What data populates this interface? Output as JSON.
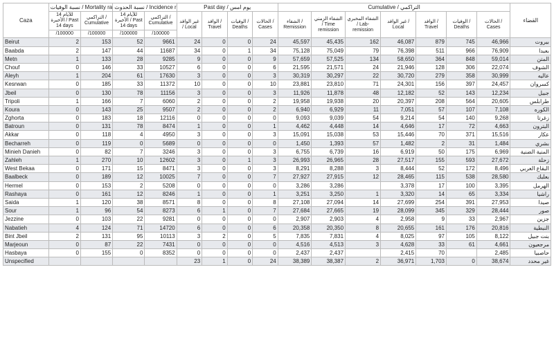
{
  "headers": {
    "caza": "Caza",
    "qada": "القضاء",
    "mortality_group": "نسبة الوفيات / Mortality rate",
    "incidence_group": "نسبة الحدوث / Incidence rate",
    "pastday_group": "Past day / يوم امس",
    "cumulative_group": "Cumulative / التراكمي",
    "mort_p14": "للأيام 14 الأخيرة / Past 14 days",
    "mort_cum": "التراكمي / Cumulative",
    "inc_p14": "للأيام 14 الأخيرة / Past 14 days",
    "inc_cum": "التراكمي / Cumulative",
    "pd_local": "غير الوافد / Local",
    "pd_travel": "الوافد / Travel",
    "pd_deaths": "الوفيات / Deaths",
    "pd_cases": "الحالات / Cases",
    "cu_rem": "الشفاء / Remission",
    "cu_timerem": "الشفاء الزمني / Time remission",
    "cu_lab": "الشفاء المخبري / Lab-remission",
    "cu_local": "غير الوافد / Local",
    "cu_travel": "الوافد / Travel",
    "cu_deaths": "الوفيات / Deaths",
    "cu_cases": "الحالات / Cases",
    "per100k": "/100000"
  },
  "rows": [
    {
      "en": "Beirut",
      "m14": 2,
      "mcum": 153,
      "i14": 52,
      "icum": 9661,
      "pdl": 24,
      "pdt": 0,
      "pdd": 0,
      "pdc": 24,
      "cur": "45,597",
      "cut": "45,435",
      "cul": 162,
      "cloc": "46,087",
      "ctr": 879,
      "cd": 745,
      "cc": "46,966",
      "ar": "بيروت"
    },
    {
      "en": "Baabda",
      "m14": 2,
      "mcum": 147,
      "i14": 44,
      "icum": 11687,
      "pdl": 34,
      "pdt": 0,
      "pdd": 1,
      "pdc": 34,
      "cur": "75,128",
      "cut": "75,049",
      "cul": 79,
      "cloc": "76,398",
      "ctr": 511,
      "cd": 966,
      "cc": "76,909",
      "ar": "بعبدا"
    },
    {
      "en": "Metn",
      "m14": 1,
      "mcum": 133,
      "i14": 28,
      "icum": 9285,
      "pdl": 9,
      "pdt": 0,
      "pdd": 0,
      "pdc": 9,
      "cur": "57,659",
      "cut": "57,525",
      "cul": 134,
      "cloc": "58,650",
      "ctr": 364,
      "cd": 848,
      "cc": "59,014",
      "ar": "المتن"
    },
    {
      "en": "Chouf",
      "m14": 0,
      "mcum": 146,
      "i14": 33,
      "icum": 10527,
      "pdl": 6,
      "pdt": 0,
      "pdd": 0,
      "pdc": 6,
      "cur": "21,595",
      "cut": "21,571",
      "cul": 24,
      "cloc": "21,946",
      "ctr": 128,
      "cd": 306,
      "cc": "22,074",
      "ar": "الشوف"
    },
    {
      "en": "Aleyh",
      "m14": 1,
      "mcum": 204,
      "i14": 61,
      "icum": 17630,
      "pdl": 3,
      "pdt": 0,
      "pdd": 0,
      "pdc": 3,
      "cur": "30,319",
      "cut": "30,297",
      "cul": 22,
      "cloc": "30,720",
      "ctr": 279,
      "cd": 358,
      "cc": "30,999",
      "ar": "عاليه"
    },
    {
      "en": "Kesrwan",
      "m14": 0,
      "mcum": 185,
      "i14": 33,
      "icum": 11372,
      "pdl": 10,
      "pdt": 0,
      "pdd": 0,
      "pdc": 10,
      "cur": "23,881",
      "cut": "23,810",
      "cul": 71,
      "cloc": "24,301",
      "ctr": 156,
      "cd": 397,
      "cc": "24,457",
      "ar": "كسروان"
    },
    {
      "en": "Jbeil",
      "m14": 0,
      "mcum": 130,
      "i14": 78,
      "icum": 11156,
      "pdl": 3,
      "pdt": 0,
      "pdd": 0,
      "pdc": 3,
      "cur": "11,926",
      "cut": "11,878",
      "cul": 48,
      "cloc": "12,182",
      "ctr": 52,
      "cd": 143,
      "cc": "12,234",
      "ar": "جبيل"
    },
    {
      "en": "Tripoli",
      "m14": 1,
      "mcum": 166,
      "i14": 7,
      "icum": 6060,
      "pdl": 2,
      "pdt": 0,
      "pdd": 0,
      "pdc": 2,
      "cur": "19,958",
      "cut": "19,938",
      "cul": 20,
      "cloc": "20,397",
      "ctr": 208,
      "cd": 564,
      "cc": "20,605",
      "ar": "طرابلس"
    },
    {
      "en": "Koura",
      "m14": 0,
      "mcum": 143,
      "i14": 25,
      "icum": 9507,
      "pdl": 2,
      "pdt": 0,
      "pdd": 0,
      "pdc": 2,
      "cur": "6,940",
      "cut": "6,929",
      "cul": 11,
      "cloc": "7,051",
      "ctr": 57,
      "cd": 107,
      "cc": "7,108",
      "ar": "الكوره"
    },
    {
      "en": "Zghorta",
      "m14": 0,
      "mcum": 183,
      "i14": 18,
      "icum": 12116,
      "pdl": 0,
      "pdt": 0,
      "pdd": 0,
      "pdc": 0,
      "cur": "9,093",
      "cut": "9,039",
      "cul": 54,
      "cloc": "9,214",
      "ctr": 54,
      "cd": 140,
      "cc": "9,268",
      "ar": "زغرتا"
    },
    {
      "en": "Batroun",
      "m14": 0,
      "mcum": 131,
      "i14": 78,
      "icum": 8474,
      "pdl": 1,
      "pdt": 0,
      "pdd": 0,
      "pdc": 1,
      "cur": "4,462",
      "cut": "4,448",
      "cul": 14,
      "cloc": "4,646",
      "ctr": 17,
      "cd": 72,
      "cc": "4,663",
      "ar": "البترون"
    },
    {
      "en": "Akkar",
      "m14": 0,
      "mcum": 118,
      "i14": 4,
      "icum": 4950,
      "pdl": 3,
      "pdt": 0,
      "pdd": 0,
      "pdc": 3,
      "cur": "15,091",
      "cut": "15,038",
      "cul": 53,
      "cloc": "15,446",
      "ctr": 70,
      "cd": 371,
      "cc": "15,516",
      "ar": "عكار"
    },
    {
      "en": "Becharreh",
      "m14": 0,
      "mcum": 119,
      "i14": 0,
      "icum": 5689,
      "pdl": 0,
      "pdt": 0,
      "pdd": 0,
      "pdc": 0,
      "cur": "1,450",
      "cut": "1,393",
      "cul": 57,
      "cloc": "1,482",
      "ctr": 2,
      "cd": 31,
      "cc": "1,484",
      "ar": "بشري"
    },
    {
      "en": "Minieh Danieh",
      "m14": 0,
      "mcum": 82,
      "i14": 7,
      "icum": 3246,
      "pdl": 3,
      "pdt": 0,
      "pdd": 0,
      "pdc": 3,
      "cur": "6,755",
      "cut": "6,739",
      "cul": 16,
      "cloc": "6,919",
      "ctr": 50,
      "cd": 175,
      "cc": "6,969",
      "ar": "المنية الضنية"
    },
    {
      "en": "Zahleh",
      "m14": 1,
      "mcum": 270,
      "i14": 10,
      "icum": 12602,
      "pdl": 3,
      "pdt": 0,
      "pdd": 1,
      "pdc": 3,
      "cur": "26,993",
      "cut": "26,965",
      "cul": 28,
      "cloc": "27,517",
      "ctr": 155,
      "cd": 593,
      "cc": "27,672",
      "ar": "زحلة"
    },
    {
      "en": "West Bekaa",
      "m14": 0,
      "mcum": 171,
      "i14": 15,
      "icum": 8471,
      "pdl": 3,
      "pdt": 0,
      "pdd": 0,
      "pdc": 3,
      "cur": "8,291",
      "cut": "8,288",
      "cul": 3,
      "cloc": "8,444",
      "ctr": 52,
      "cd": 172,
      "cc": "8,496",
      "ar": "البقاع الغربي"
    },
    {
      "en": "Baalbeck",
      "m14": 0,
      "mcum": 189,
      "i14": 12,
      "icum": 10025,
      "pdl": 7,
      "pdt": 0,
      "pdd": 0,
      "pdc": 7,
      "cur": "27,927",
      "cut": "27,915",
      "cul": 12,
      "cloc": "28,465",
      "ctr": 115,
      "cd": 538,
      "cc": "28,580",
      "ar": "بعلبك"
    },
    {
      "en": "Hermel",
      "m14": 0,
      "mcum": 153,
      "i14": 2,
      "icum": 5208,
      "pdl": 0,
      "pdt": 0,
      "pdd": 0,
      "pdc": 0,
      "cur": "3,286",
      "cut": "3,286",
      "cul": "",
      "cloc": "3,378",
      "ctr": 17,
      "cd": 100,
      "cc": "3,395",
      "ar": "الهرمل"
    },
    {
      "en": "Rashaya",
      "m14": 0,
      "mcum": 161,
      "i14": 12,
      "icum": 8246,
      "pdl": 1,
      "pdt": 0,
      "pdd": 0,
      "pdc": 1,
      "cur": "3,251",
      "cut": "3,250",
      "cul": 1,
      "cloc": "3,320",
      "ctr": 14,
      "cd": 65,
      "cc": "3,334",
      "ar": "راشيا"
    },
    {
      "en": "Saida",
      "m14": 1,
      "mcum": 120,
      "i14": 38,
      "icum": 8571,
      "pdl": 8,
      "pdt": 0,
      "pdd": 0,
      "pdc": 8,
      "cur": "27,108",
      "cut": "27,094",
      "cul": 14,
      "cloc": "27,699",
      "ctr": 254,
      "cd": 391,
      "cc": "27,953",
      "ar": "صيدا"
    },
    {
      "en": "Sour",
      "m14": 1,
      "mcum": 96,
      "i14": 54,
      "icum": 8273,
      "pdl": 6,
      "pdt": 1,
      "pdd": 0,
      "pdc": 7,
      "cur": "27,684",
      "cut": "27,665",
      "cul": 19,
      "cloc": "28,099",
      "ctr": 345,
      "cd": 329,
      "cc": "28,444",
      "ar": "صور"
    },
    {
      "en": "Jezzine",
      "m14": 0,
      "mcum": 103,
      "i14": 22,
      "icum": 9281,
      "pdl": 0,
      "pdt": 0,
      "pdd": 0,
      "pdc": 0,
      "cur": "2,907",
      "cut": "2,903",
      "cul": 4,
      "cloc": "2,958",
      "ctr": 9,
      "cd": 33,
      "cc": "2,967",
      "ar": "جزين"
    },
    {
      "en": "Nabatieh",
      "m14": 4,
      "mcum": 124,
      "i14": 71,
      "icum": 14720,
      "pdl": 6,
      "pdt": 0,
      "pdd": 0,
      "pdc": 6,
      "cur": "20,358",
      "cut": "20,350",
      "cul": 8,
      "cloc": "20,655",
      "ctr": 161,
      "cd": 176,
      "cc": "20,816",
      "ar": "النبطية"
    },
    {
      "en": "Bint Jbeil",
      "m14": 2,
      "mcum": 131,
      "i14": 95,
      "icum": 10113,
      "pdl": 3,
      "pdt": 2,
      "pdd": 0,
      "pdc": 5,
      "cur": "7,835",
      "cut": "7,831",
      "cul": 4,
      "cloc": "8,025",
      "ctr": 97,
      "cd": 105,
      "cc": "8,122",
      "ar": "بنت جبيل"
    },
    {
      "en": "Marjeoun",
      "m14": 0,
      "mcum": 87,
      "i14": 22,
      "icum": 7431,
      "pdl": 0,
      "pdt": 0,
      "pdd": 0,
      "pdc": 0,
      "cur": "4,516",
      "cut": "4,513",
      "cul": 3,
      "cloc": "4,628",
      "ctr": 33,
      "cd": 61,
      "cc": "4,661",
      "ar": "مرجعيون"
    },
    {
      "en": "Hasbaya",
      "m14": 0,
      "mcum": 155,
      "i14": 0,
      "icum": 8352,
      "pdl": 0,
      "pdt": 0,
      "pdd": 0,
      "pdc": 0,
      "cur": "2,437",
      "cut": "2,437",
      "cul": "",
      "cloc": "2,415",
      "ctr": 70,
      "cd": "",
      "cc": "2,485",
      "ar": "حاصبيا"
    },
    {
      "en": "Unspecified",
      "m14": "",
      "mcum": "",
      "i14": "",
      "icum": "",
      "pdl": 23,
      "pdt": 1,
      "pdd": 0,
      "pdc": 24,
      "cur": "38,389",
      "cut": "38,387",
      "cul": 2,
      "cloc": "36,971",
      "ctr": "1,703",
      "cd": 0,
      "cc": "38,674",
      "ar": "غير محدد"
    }
  ]
}
